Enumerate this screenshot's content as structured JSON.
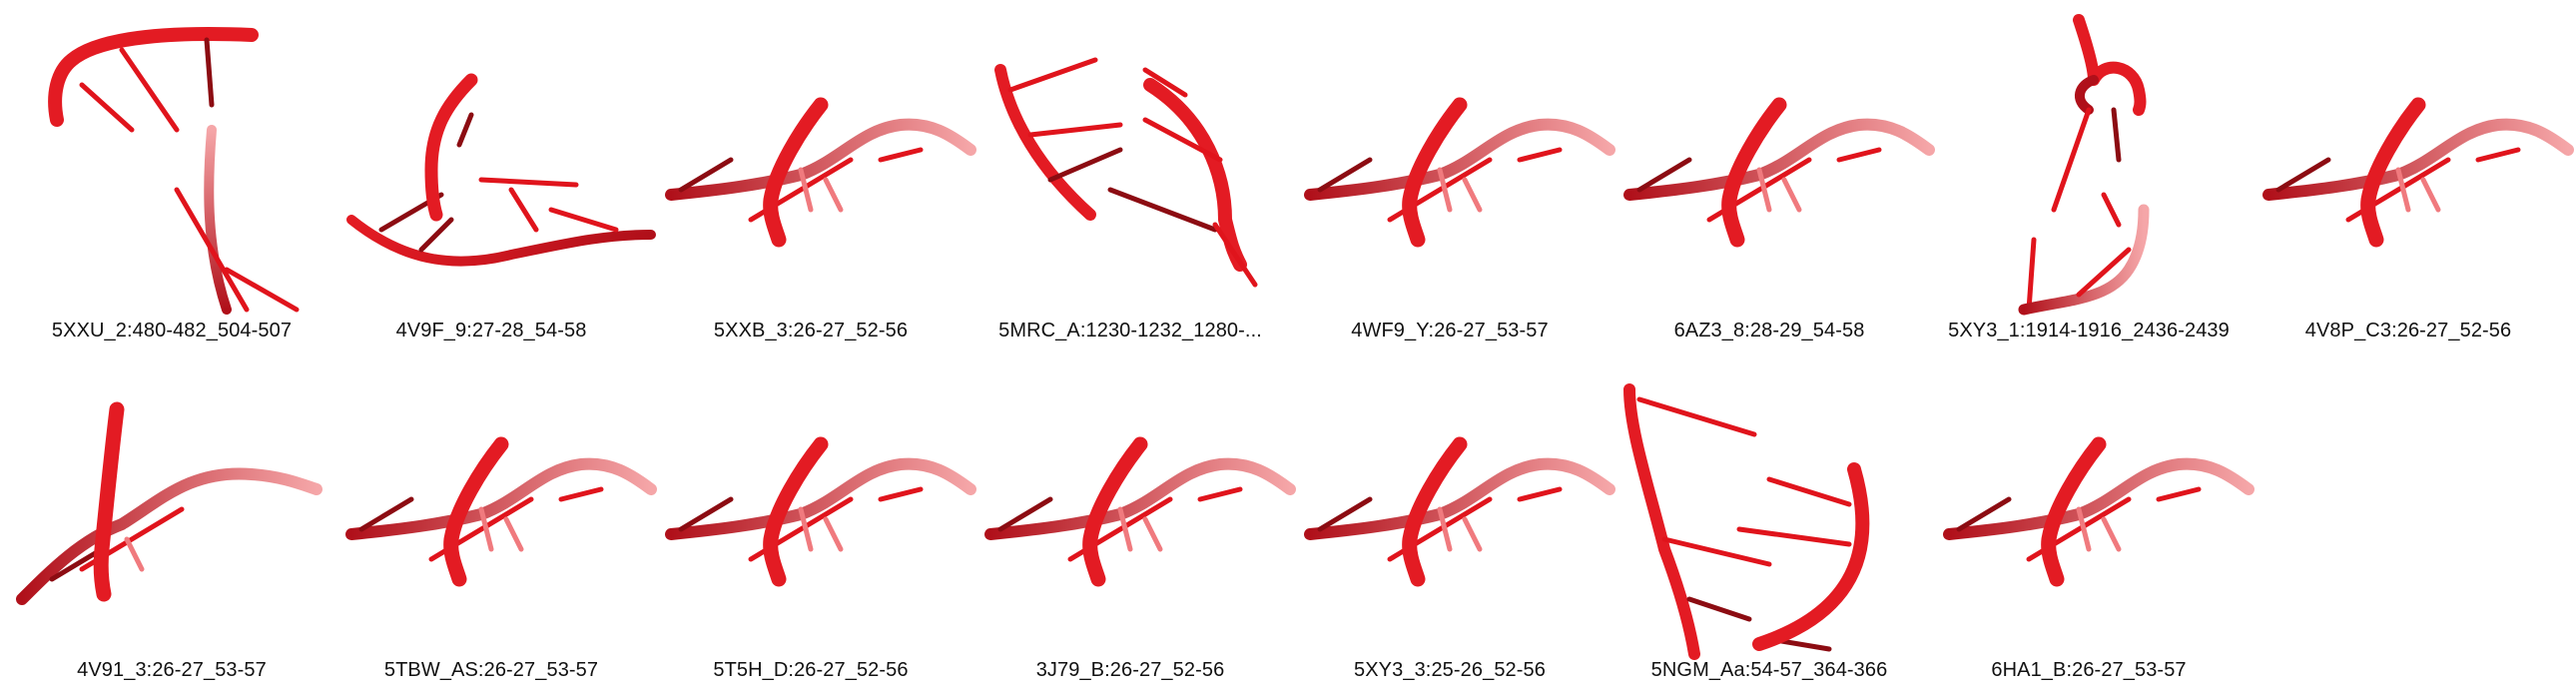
{
  "colors": {
    "strand_dark": "#b0101a",
    "strand_mid": "#e31b23",
    "strand_light": "#f07a7e",
    "strand_pale": "#f5a6a8",
    "base": "#e0141c",
    "base_dark": "#8c0c12",
    "caption": "#111111"
  },
  "structures": [
    {
      "id": "s1",
      "label": "5XXU_2:480-482_504-507",
      "motif": "hook-split"
    },
    {
      "id": "s2",
      "label": "4V9F_9:27-28_54-58",
      "motif": "crossed-flat"
    },
    {
      "id": "s3",
      "label": "5XXB_3:26-27_52-56",
      "motif": "kink-turn"
    },
    {
      "id": "s4",
      "label": "5MRC_A:1230-1232_1280-...",
      "motif": "parallel-long"
    },
    {
      "id": "s5",
      "label": "4WF9_Y:26-27_53-57",
      "motif": "kink-turn"
    },
    {
      "id": "s6",
      "label": "6AZ3_8:28-29_54-58",
      "motif": "kink-turn"
    },
    {
      "id": "s7",
      "label": "5XY3_1:1914-1916_2436-2439",
      "motif": "hook-tall"
    },
    {
      "id": "s8",
      "label": "4V8P_C3:26-27_52-56",
      "motif": "kink-turn"
    },
    {
      "id": "s9",
      "label": "4V91_3:26-27_53-57",
      "motif": "kink-turn-tall"
    },
    {
      "id": "s10",
      "label": "5TBW_AS:26-27_53-57",
      "motif": "kink-turn"
    },
    {
      "id": "s11",
      "label": "5T5H_D:26-27_52-56",
      "motif": "kink-turn"
    },
    {
      "id": "s12",
      "label": "3J79_B:26-27_52-56",
      "motif": "kink-turn"
    },
    {
      "id": "s13",
      "label": "5XY3_3:25-26_52-56",
      "motif": "kink-turn"
    },
    {
      "id": "s14",
      "label": "5NGM_Aa:54-57_364-366",
      "motif": "parallel-long-2"
    },
    {
      "id": "s15",
      "label": "6HA1_B:26-27_53-57",
      "motif": "kink-turn"
    }
  ]
}
